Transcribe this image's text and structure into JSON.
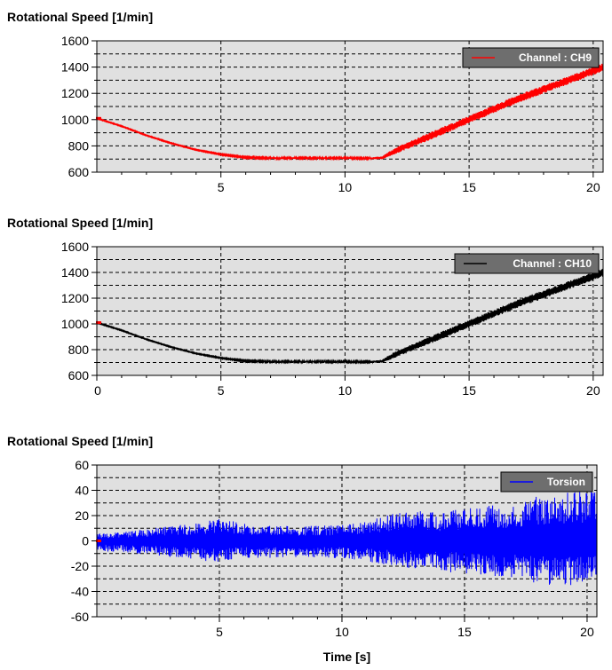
{
  "colors": {
    "plot_bg": "#e0e0e0",
    "legend_bg": "#6e6e6e",
    "grid": "#000000"
  },
  "chart_data": [
    {
      "type": "line",
      "title": "Rotational Speed  [1/min]",
      "xlabel": "",
      "xlim": [
        0,
        20.4
      ],
      "ylim": [
        600,
        1600
      ],
      "x_ticks": [
        "5",
        "10",
        "15",
        "20"
      ],
      "y_ticks": [
        "600",
        "800",
        "1000",
        "1200",
        "1400",
        "1600"
      ],
      "grid": true,
      "legend_position": "top-right",
      "series": [
        {
          "name": "Channel : CH9",
          "color": "#ff0000",
          "x": [
            0,
            1,
            2,
            3,
            4,
            5,
            6,
            7,
            8,
            9,
            10,
            11,
            11.5,
            12,
            13,
            14,
            15,
            16,
            17,
            18,
            19,
            20,
            20.4
          ],
          "y": [
            1010,
            950,
            880,
            820,
            770,
            735,
            712,
            707,
            707,
            707,
            707,
            705,
            710,
            760,
            840,
            920,
            1000,
            1080,
            1160,
            1230,
            1300,
            1370,
            1400
          ],
          "band_halfwidth": [
            3,
            3,
            3,
            3,
            3,
            4,
            5,
            6,
            6,
            6,
            6,
            6,
            12,
            24,
            28,
            30,
            30,
            30,
            32,
            32,
            32,
            32,
            32
          ]
        }
      ]
    },
    {
      "type": "line",
      "title": "Rotational Speed  [1/min]",
      "xlabel": "",
      "xlim": [
        0,
        20.4
      ],
      "ylim": [
        600,
        1600
      ],
      "x_ticks": [
        "0",
        "5",
        "10",
        "15",
        "20"
      ],
      "y_ticks": [
        "600",
        "800",
        "1000",
        "1200",
        "1400",
        "1600"
      ],
      "grid": true,
      "legend_position": "top-right",
      "series": [
        {
          "name": "Channel : CH10",
          "color": "#000000",
          "x": [
            0,
            1,
            2,
            3,
            4,
            5,
            6,
            7,
            8,
            9,
            10,
            11,
            11.5,
            12,
            13,
            14,
            15,
            16,
            17,
            18,
            19,
            20,
            20.4
          ],
          "y": [
            1010,
            950,
            880,
            820,
            770,
            735,
            712,
            707,
            707,
            707,
            707,
            705,
            710,
            760,
            840,
            920,
            1000,
            1080,
            1160,
            1230,
            1300,
            1370,
            1400
          ],
          "band_halfwidth": [
            3,
            3,
            3,
            3,
            3,
            4,
            5,
            6,
            6,
            6,
            6,
            6,
            12,
            24,
            28,
            30,
            30,
            30,
            32,
            32,
            32,
            32,
            32
          ]
        }
      ]
    },
    {
      "type": "line",
      "title": "Rotational Speed  [1/min]",
      "xlabel": "Time  [s]",
      "xlim": [
        0,
        20.4
      ],
      "ylim": [
        -60,
        60
      ],
      "x_ticks": [
        "5",
        "10",
        "15",
        "20"
      ],
      "y_ticks": [
        "-60",
        "-40",
        "-20",
        "0",
        "20",
        "40",
        "60"
      ],
      "grid": true,
      "legend_position": "top-right",
      "series": [
        {
          "name": "Torsion",
          "color": "#0000ff",
          "x": [
            0,
            1,
            2,
            3,
            4,
            5,
            6,
            7,
            8,
            9,
            10,
            11,
            12,
            13,
            14,
            15,
            16,
            17,
            18,
            19,
            20,
            20.4
          ],
          "y_upper": [
            6,
            7,
            9,
            12,
            14,
            18,
            14,
            12,
            12,
            12,
            13,
            15,
            22,
            24,
            22,
            26,
            28,
            30,
            36,
            38,
            40,
            42
          ],
          "y_lower": [
            -8,
            -9,
            -11,
            -13,
            -15,
            -17,
            -14,
            -14,
            -13,
            -13,
            -14,
            -16,
            -20,
            -22,
            -24,
            -26,
            -27,
            -30,
            -35,
            -36,
            -33,
            -32
          ]
        }
      ]
    }
  ]
}
